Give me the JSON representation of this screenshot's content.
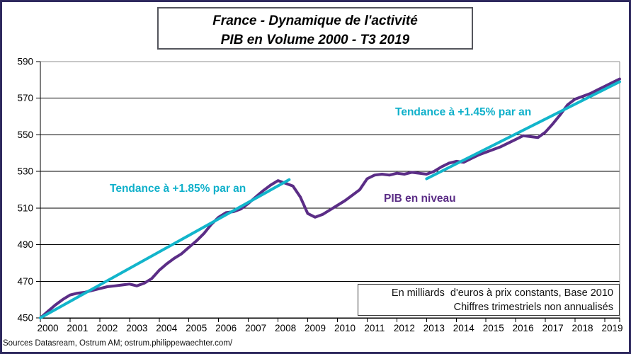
{
  "frame": {
    "border_color": "#2e295e",
    "background": "#ffffff"
  },
  "title": {
    "line1": "France - Dynamique de l'activité",
    "line2": "PIB en Volume 2000 - T3 2019"
  },
  "annotations": {
    "trend1_label": {
      "text": "Tendance à +1.85% par an",
      "color": "#0fb0ca"
    },
    "trend2_label": {
      "text": "Tendance à +1.45% par an",
      "color": "#0fb0ca"
    },
    "series_label": {
      "text": "PIB en niveau",
      "color": "#5b2d86"
    }
  },
  "info_box": {
    "line1": "En milliards  d'euros à prix constants, Base 2010",
    "line2": "Chiffres trimestriels non annualisés"
  },
  "source_note": "Sources Datasream, Ostrum AM; ostrum.philippewaechter.com/",
  "chart_data": {
    "type": "line",
    "title": "France - Dynamique de l'activité — PIB en Volume 2000 - T3 2019",
    "xlabel": "",
    "ylabel": "",
    "x_unit": "quarterly, 2000Q1 - 2019Q3",
    "x_tick_labels": [
      "2000",
      "2001",
      "2002",
      "2003",
      "2004",
      "2005",
      "2006",
      "2007",
      "2008",
      "2009",
      "2010",
      "2011",
      "2012",
      "2013",
      "2014",
      "2015",
      "2016",
      "2017",
      "2018",
      "2019"
    ],
    "y_ticks": [
      450,
      470,
      490,
      510,
      530,
      550,
      570,
      590
    ],
    "ylim": [
      450,
      590
    ],
    "grid": "horizontal",
    "legend_position": "none",
    "colors": {
      "grid": "#000000",
      "axis": "#000000",
      "plot_border": "#8f8f8f"
    },
    "series": [
      {
        "name": "PIB en niveau",
        "color": "#5b2d86",
        "frequency": "quarterly",
        "start": "2000Q1",
        "end": "2019Q3",
        "values": [
          450.0,
          453.5,
          457.0,
          460.0,
          462.5,
          463.5,
          464.0,
          465.0,
          466.0,
          467.0,
          467.5,
          468.0,
          468.5,
          467.5,
          469.0,
          471.5,
          476.0,
          479.5,
          482.5,
          485.0,
          488.5,
          492.0,
          496.0,
          501.0,
          505.0,
          507.5,
          508.0,
          509.5,
          512.5,
          516.0,
          519.5,
          522.5,
          525.0,
          523.5,
          522.0,
          516.0,
          507.0,
          505.0,
          506.5,
          509.0,
          511.5,
          514.0,
          517.0,
          520.0,
          526.0,
          528.0,
          528.5,
          528.0,
          529.0,
          528.5,
          529.5,
          529.0,
          528.5,
          530.0,
          532.5,
          534.5,
          535.5,
          535.0,
          537.0,
          539.0,
          540.5,
          542.0,
          543.5,
          545.5,
          547.5,
          549.5,
          549.0,
          548.5,
          551.5,
          556.0,
          561.0,
          566.5,
          569.5,
          571.0,
          572.5,
          574.5,
          576.5,
          578.5,
          580.5
        ]
      },
      {
        "name": "Tendance à +1.85% par an",
        "type": "trend",
        "color": "#12b5cb",
        "start": {
          "q_index": 0,
          "value": 450.0,
          "label": "2000Q1"
        },
        "end": {
          "q_index": 33.5,
          "value": 525.5,
          "label": "2008Q2"
        }
      },
      {
        "name": "Tendance à +1.45% par an",
        "type": "trend",
        "color": "#12b5cb",
        "start": {
          "q_index": 52,
          "value": 526.0,
          "label": "2013Q1"
        },
        "end": {
          "q_index": 78,
          "value": 579.0,
          "label": "2019Q3"
        }
      }
    ]
  }
}
